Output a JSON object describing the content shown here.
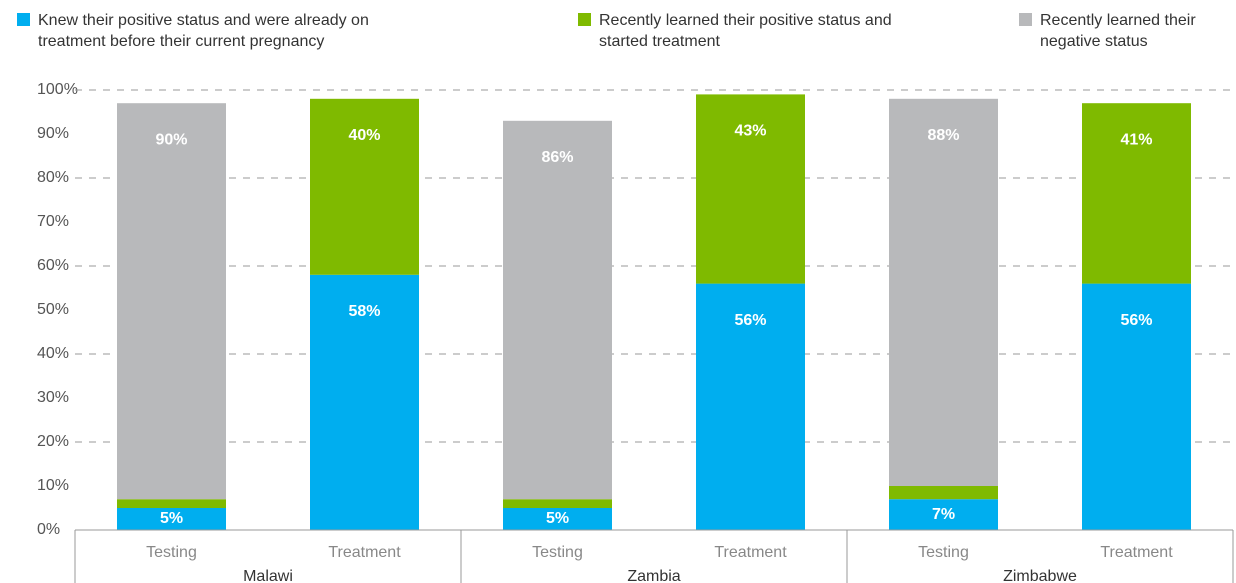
{
  "chart_data": {
    "type": "stacked_bar",
    "groups": [
      "Malawi",
      "Zambia",
      "Zimbabwe"
    ],
    "categories": [
      "Testing",
      "Treatment",
      "Testing",
      "Treatment",
      "Testing",
      "Treatment"
    ],
    "series": [
      {
        "name": "Knew their positive status and were already on treatment before their current pregnancy",
        "color": "#00aeef",
        "values": [
          5,
          58,
          5,
          56,
          7,
          56
        ],
        "value_labels": [
          "5%",
          "58%",
          "5%",
          "56%",
          "7%",
          "56%"
        ]
      },
      {
        "name": "Recently learned their positive status and started treatment",
        "color": "#7fba00",
        "values": [
          2,
          40,
          2,
          43,
          3,
          41
        ],
        "value_labels": [
          "2%",
          "40%",
          "2%",
          "43%",
          "3%",
          "41%"
        ]
      },
      {
        "name": "Recently learned their negative status",
        "color": "#b8b9bb",
        "values": [
          90,
          null,
          86,
          null,
          88,
          null
        ],
        "value_labels": [
          "90%",
          null,
          "86%",
          null,
          "88%",
          null
        ]
      }
    ],
    "ylim": [
      0,
      100
    ],
    "yticks": [
      {
        "value": 0,
        "label": "0%"
      },
      {
        "value": 10,
        "label": "10%"
      },
      {
        "value": 20,
        "label": "20%"
      },
      {
        "value": 30,
        "label": "30%"
      },
      {
        "value": 40,
        "label": "40%"
      },
      {
        "value": 50,
        "label": "50%"
      },
      {
        "value": 60,
        "label": "60%"
      },
      {
        "value": 70,
        "label": "70%"
      },
      {
        "value": 80,
        "label": "80%"
      },
      {
        "value": 90,
        "label": "90%"
      },
      {
        "value": 100,
        "label": "100%"
      }
    ],
    "grid": true
  }
}
